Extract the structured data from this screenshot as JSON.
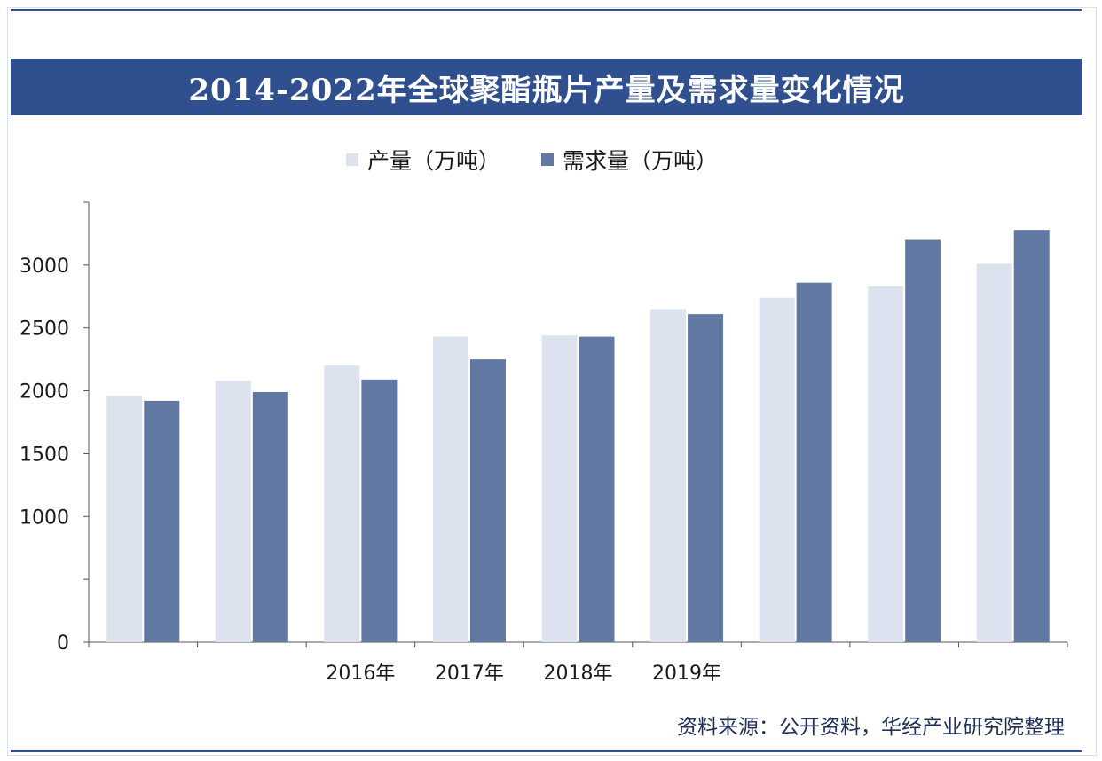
{
  "header": {
    "title": "2014-2022年全球聚酯瓶片产量及需求量变化情况"
  },
  "legend": {
    "production_label": "产量（万吨）",
    "demand_label": "需求量（万吨）"
  },
  "colors": {
    "production": "#dde3ee",
    "demand": "#6178a3",
    "banner": "#2f4f8f",
    "axis": "#555555"
  },
  "source": {
    "text": "资料来源：公开资料，华经产业研究院整理"
  },
  "chart_data": {
    "type": "bar",
    "title": "2014-2022年全球聚酯瓶片产量及需求量变化情况",
    "categories": [
      "",
      "",
      "2016年",
      "2017年",
      "2018年",
      "2019年",
      "",
      "",
      ""
    ],
    "series": [
      {
        "name": "产量（万吨）",
        "values": [
          1960,
          2080,
          2200,
          2430,
          2440,
          2650,
          2740,
          2830,
          3010
        ]
      },
      {
        "name": "需求量（万吨）",
        "values": [
          1920,
          1990,
          2090,
          2250,
          2430,
          2610,
          2860,
          3200,
          3280
        ]
      }
    ],
    "yticks": [
      "0",
      "",
      "1000",
      "1500",
      "2000",
      "2500",
      "3000",
      ""
    ],
    "ylim": [
      0,
      3500
    ],
    "grid": false,
    "legend_position": "top-center"
  }
}
